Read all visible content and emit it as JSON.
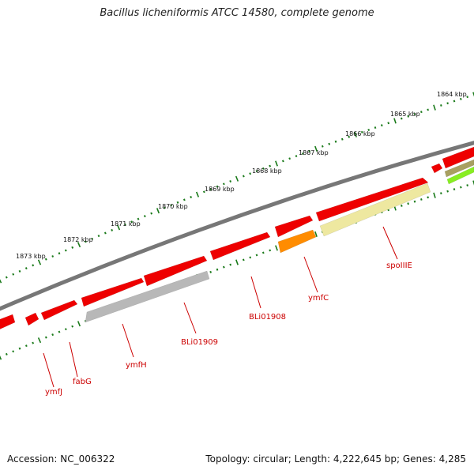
{
  "title": "Bacillus licheniformis ATCC 14580, complete genome",
  "footer": {
    "accession": "Accession: NC_006322",
    "summary": "Topology: circular; Length: 4,222,645 bp; Genes: 4,285"
  },
  "colors": {
    "backbone": "#777777",
    "gene_red": "#ee0000",
    "gene_orange": "#ff8c00",
    "gene_yellow": "#eee8a0",
    "gene_gray": "#b8b8b8",
    "gene_olive": "#a8a060",
    "gene_lime": "#88ee22",
    "label_red": "#cc0000",
    "tick_green": "#1a7a1a"
  },
  "position_labels": [
    "1864 kbp",
    "1865 kbp",
    "1866 kbp",
    "1867 kbp",
    "1868 kbp",
    "1869 kbp",
    "1870 kbp",
    "1871 kbp",
    "1872 kbp",
    "1873 kbp"
  ],
  "gene_labels": [
    "spoIIIE",
    "ymfC",
    "BLi01908",
    "BLi01909",
    "ymfH",
    "fabG",
    "ymfJ"
  ]
}
